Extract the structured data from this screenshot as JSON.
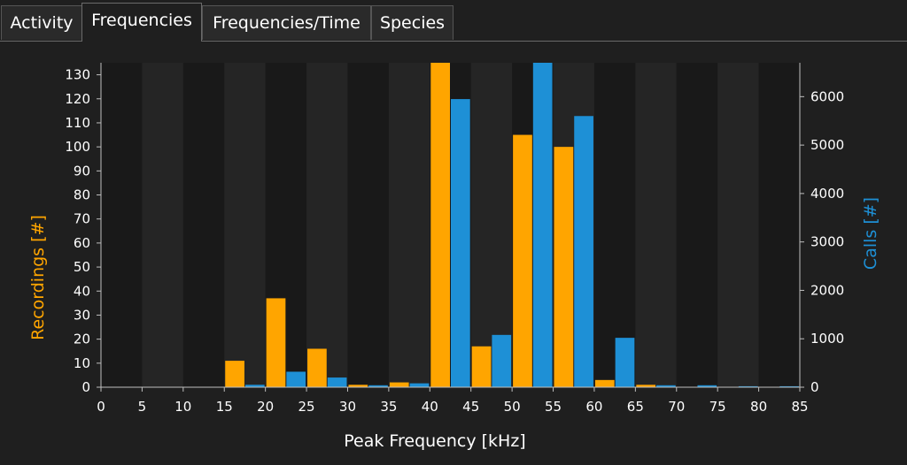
{
  "tabs": [
    {
      "label": "Activity",
      "active": false
    },
    {
      "label": "Frequencies",
      "active": true
    },
    {
      "label": "Frequencies/Time",
      "active": false
    },
    {
      "label": "Species",
      "active": false
    }
  ],
  "colors": {
    "recordings": "#ffa500",
    "calls": "#1e90d6",
    "band_dark": "#191919",
    "band_light": "#252525",
    "axis": "#bfbfbf",
    "text": "#ffffff"
  },
  "chart_data": {
    "type": "bar",
    "xlabel": "Peak Frequency [kHz]",
    "ylabel_left": "Recordings [#]",
    "ylabel_right": "Calls [#]",
    "xlim": [
      0,
      85
    ],
    "ylim_left": [
      0,
      135
    ],
    "ylim_right": [
      0,
      6700
    ],
    "x_ticks": [
      0,
      5,
      10,
      15,
      20,
      25,
      30,
      35,
      40,
      45,
      50,
      55,
      60,
      65,
      70,
      75,
      80,
      85
    ],
    "y_ticks_left": [
      0,
      10,
      20,
      30,
      40,
      50,
      60,
      70,
      80,
      90,
      100,
      110,
      120,
      130
    ],
    "y_ticks_right": [
      0,
      1000,
      2000,
      3000,
      4000,
      5000,
      6000
    ],
    "bin_width": 5,
    "bin_starts": [
      15,
      20,
      25,
      30,
      35,
      40,
      45,
      50,
      55,
      60,
      65,
      70,
      75,
      80
    ],
    "series": [
      {
        "name": "Recordings [#]",
        "axis": "left",
        "values": [
          11,
          37,
          16,
          1,
          2,
          135,
          17,
          105,
          100,
          3,
          1,
          0,
          0,
          0
        ]
      },
      {
        "name": "Calls [#]",
        "axis": "right",
        "values": [
          50,
          320,
          200,
          40,
          80,
          5950,
          1080,
          6700,
          5600,
          1020,
          40,
          40,
          20,
          20
        ]
      }
    ]
  }
}
